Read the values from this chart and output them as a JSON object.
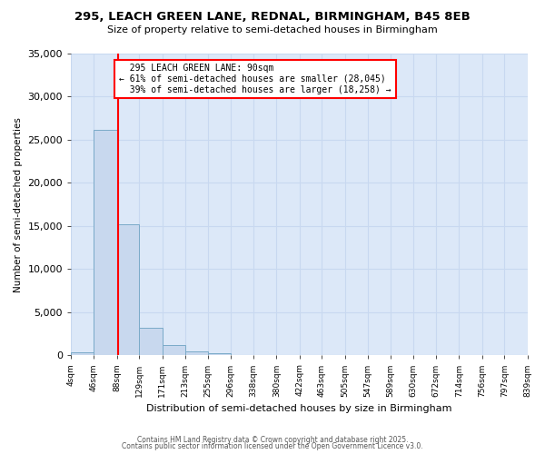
{
  "title": "295, LEACH GREEN LANE, REDNAL, BIRMINGHAM, B45 8EB",
  "subtitle": "Size of property relative to semi-detached houses in Birmingham",
  "xlabel": "Distribution of semi-detached houses by size in Birmingham",
  "ylabel": "Number of semi-detached properties",
  "property_size": 90,
  "property_label": "295 LEACH GREEN LANE: 90sqm",
  "pct_smaller": 61,
  "pct_larger": 39,
  "n_smaller": 28045,
  "n_larger": 18258,
  "bin_edges": [
    4,
    46,
    88,
    129,
    171,
    213,
    255,
    296,
    338,
    380,
    422,
    463,
    505,
    547,
    589,
    630,
    672,
    714,
    756,
    797,
    839
  ],
  "bin_counts": [
    350,
    26200,
    15200,
    3200,
    1200,
    430,
    200,
    0,
    0,
    0,
    0,
    0,
    0,
    0,
    0,
    0,
    0,
    0,
    0,
    0
  ],
  "bar_color": "#c8d8ee",
  "bar_edge_color": "#7aaac8",
  "vline_color": "red",
  "annotation_box_color": "red",
  "annotation_fill": "white",
  "grid_color": "#c8d8f0",
  "plot_bg_color": "#dce8f8",
  "figure_bg_color": "#ffffff",
  "ylim": [
    0,
    35000
  ],
  "yticks": [
    0,
    5000,
    10000,
    15000,
    20000,
    25000,
    30000,
    35000
  ],
  "footer1": "Contains HM Land Registry data © Crown copyright and database right 2025.",
  "footer2": "Contains public sector information licensed under the Open Government Licence v3.0."
}
